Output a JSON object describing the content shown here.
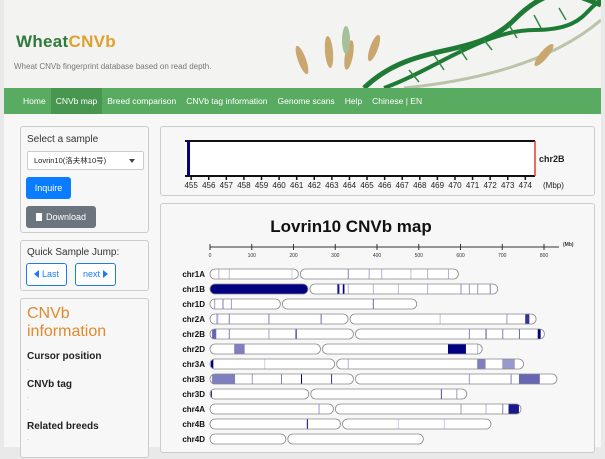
{
  "header": {
    "logo_part1": "Wheat",
    "logo_part2": "CNVb",
    "tagline": "Wheat CNVb fingerprint database based on read depth."
  },
  "nav": {
    "items": [
      "Home",
      "CNVb map",
      "Breed comparison",
      "CNVb tag information",
      "Genome scans",
      "Help",
      "Chinese | EN"
    ],
    "active": "CNVb map"
  },
  "sidebar": {
    "select_label": "Select a sample",
    "sample_value": "Lovrin10(洛夫林10号)",
    "inquire_label": "Inquire",
    "download_label": "Download",
    "jump_label": "Quick Sample Jump:",
    "last_label": "Last",
    "next_label": "next",
    "info_title_1": "CNVb",
    "info_title_2": "information",
    "cursor_label": "Cursor position",
    "cursor_value": ".",
    "tag_label": "CNVb tag",
    "tag_value_1": ".",
    "tag_value_2": ".",
    "breeds_label": "Related breeds",
    "breeds_value": "."
  },
  "colors": {
    "nav": "#5aab62",
    "nav_active": "#489650",
    "inquire": "#0a7cff",
    "download": "#6c757d",
    "accent_orange": "#e08a2e",
    "cnv_dark": "#000080",
    "marker_red": "#e03c31"
  },
  "zoom_track": {
    "chromosome": "chr2B",
    "unit": "(Mbp)",
    "ticks": [
      455,
      456,
      457,
      458,
      459,
      460,
      461,
      462,
      463,
      464,
      465,
      466,
      467,
      468,
      469,
      470,
      471,
      472,
      473,
      474
    ],
    "range": [
      454.65,
      474.55
    ],
    "bands": [
      {
        "pos": 454.85,
        "intensity": 1
      }
    ]
  },
  "chart_data": {
    "type": "chromosome-map",
    "title": "Lovrin10 CNVb map",
    "unit": "(Mb)",
    "axis_ticks": [
      0,
      100,
      200,
      300,
      400,
      500,
      600,
      700,
      800
    ],
    "xlim": [
      0,
      800
    ],
    "chromosomes": [
      {
        "name": "chr1A",
        "length": 595,
        "centromere": 214,
        "bands": [
          [
            20,
            0.3
          ],
          [
            45,
            0.25
          ],
          [
            195,
            0.2
          ],
          [
            330,
            0.5
          ],
          [
            380,
            0.35
          ],
          [
            410,
            0.3
          ],
          [
            480,
            0.25
          ],
          [
            520,
            0.3
          ],
          [
            570,
            0.3
          ]
        ]
      },
      {
        "name": "chr1B",
        "length": 689,
        "centromere": 237,
        "bands": [
          [
            0,
            1,
            237
          ],
          [
            305,
            0.9,
            310
          ],
          [
            318,
            1,
            322
          ],
          [
            330,
            0.3
          ],
          [
            390,
            0.3
          ],
          [
            450,
            0.25
          ],
          [
            520,
            0.3
          ],
          [
            600,
            0.45
          ],
          [
            620,
            0.4
          ],
          [
            640,
            0.4
          ],
          [
            670,
            0.5
          ]
        ]
      },
      {
        "name": "chr1D",
        "length": 495,
        "centromere": 171,
        "bands": [
          [
            10,
            0.4
          ],
          [
            30,
            0.5
          ],
          [
            50,
            0.4
          ],
          [
            390,
            0.6
          ]
        ]
      },
      {
        "name": "chr2A",
        "length": 781,
        "centromere": 333,
        "bands": [
          [
            15,
            0.3,
            20
          ],
          [
            45,
            0.5
          ],
          [
            140,
            0.5
          ],
          [
            265,
            0.6
          ],
          [
            330,
            0.3
          ],
          [
            550,
            0.25
          ],
          [
            710,
            0.4
          ],
          [
            755,
            0.8,
            765
          ]
        ]
      },
      {
        "name": "chr2B",
        "length": 801,
        "centromere": 346,
        "bands": [
          [
            5,
            0.6,
            15
          ],
          [
            45,
            0.5
          ],
          [
            140,
            0.35
          ],
          [
            205,
            1
          ],
          [
            620,
            0.5
          ],
          [
            660,
            0.7
          ],
          [
            700,
            0.5
          ],
          [
            740,
            0.6
          ],
          [
            785,
            1,
            792
          ]
        ]
      },
      {
        "name": "chr2D",
        "length": 652,
        "centromere": 267,
        "bands": [
          [
            58,
            0.5,
            83
          ],
          [
            570,
            1,
            613
          ],
          [
            640,
            0.3
          ]
        ]
      },
      {
        "name": "chr3A",
        "length": 751,
        "centromere": 301,
        "bands": [
          [
            2,
            1,
            8
          ],
          [
            130,
            0.2
          ],
          [
            330,
            0.3
          ],
          [
            640,
            0.5,
            660
          ],
          [
            700,
            0.4,
            730
          ]
        ]
      },
      {
        "name": "chr3B",
        "length": 831,
        "centromere": 346,
        "bands": [
          [
            5,
            0.5,
            60
          ],
          [
            100,
            0.4
          ],
          [
            170,
            0.5
          ],
          [
            218,
            1
          ],
          [
            290,
            0.8
          ],
          [
            620,
            0.4
          ],
          [
            720,
            0.5
          ],
          [
            740,
            0.6,
            790
          ]
        ]
      },
      {
        "name": "chr3D",
        "length": 615,
        "centromere": 239,
        "bands": [
          [
            2,
            1
          ],
          [
            553,
            0.7
          ],
          [
            590,
            0.4
          ]
        ]
      },
      {
        "name": "chr4A",
        "length": 745,
        "centromere": 298,
        "bands": [
          [
            260,
            0.4
          ],
          [
            600,
            0.4
          ],
          [
            660,
            0.3
          ],
          [
            700,
            0.5
          ],
          [
            715,
            0.9,
            740
          ]
        ]
      },
      {
        "name": "chr4B",
        "length": 673,
        "centromere": 315,
        "bands": [
          [
            232,
            1
          ],
          [
            450,
            0.2
          ],
          [
            560,
            0.2
          ]
        ]
      },
      {
        "name": "chr4D",
        "length": 511,
        "centromere": 184,
        "bands": []
      }
    ]
  }
}
